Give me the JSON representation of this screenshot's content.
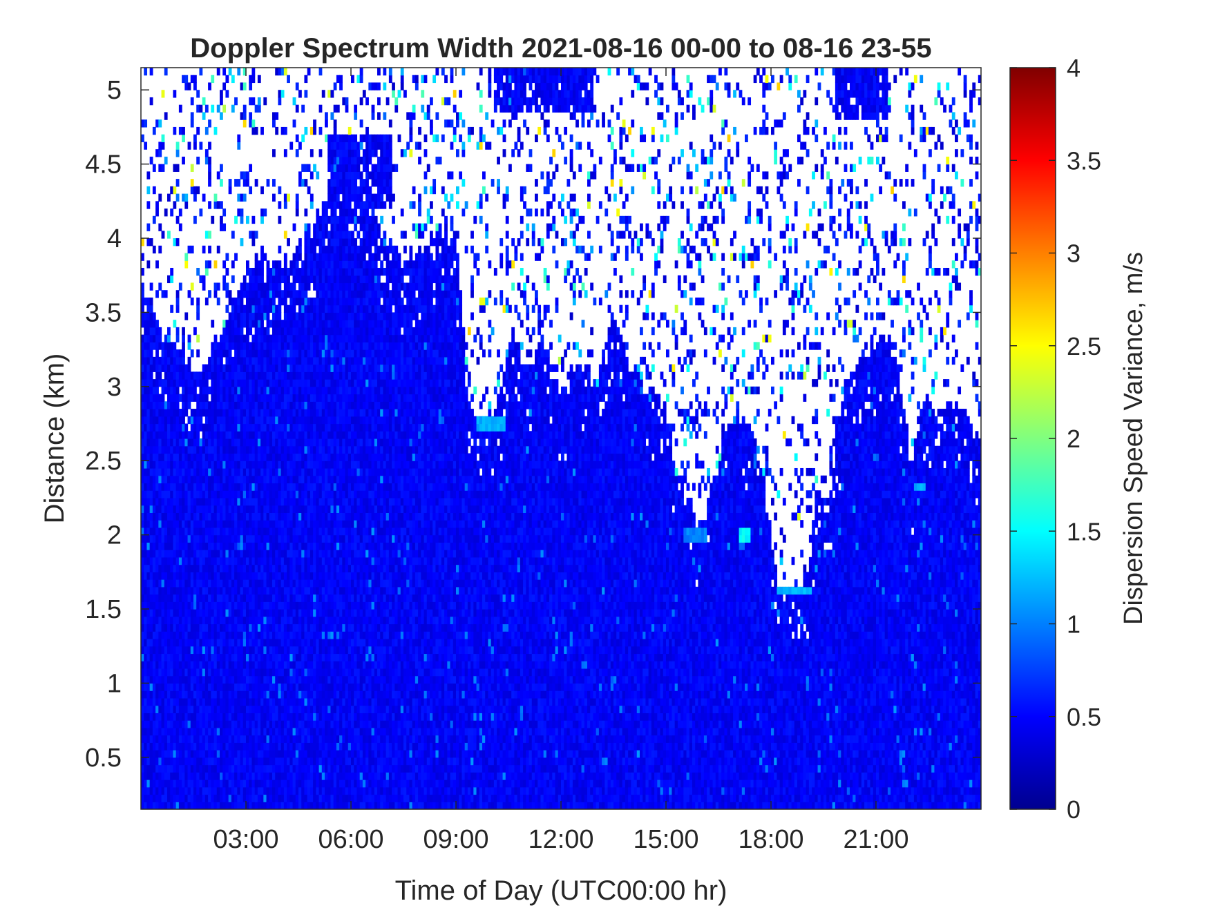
{
  "chart_data": {
    "type": "heatmap",
    "title": "Doppler Spectrum Width 2021-08-16 00-00 to 08-16 23-55",
    "xlabel": "Time of Day (UTC00:00 hr)",
    "ylabel": "Distance (km)",
    "xlim": [
      0,
      24
    ],
    "ylim": [
      0.15,
      5.15
    ],
    "x_ticks": [
      {
        "value": 3,
        "label": "03:00"
      },
      {
        "value": 6,
        "label": "06:00"
      },
      {
        "value": 9,
        "label": "09:00"
      },
      {
        "value": 12,
        "label": "12:00"
      },
      {
        "value": 15,
        "label": "15:00"
      },
      {
        "value": 18,
        "label": "18:00"
      },
      {
        "value": 21,
        "label": "21:00"
      }
    ],
    "y_ticks": [
      {
        "value": 0.5,
        "label": "0.5"
      },
      {
        "value": 1,
        "label": "1"
      },
      {
        "value": 1.5,
        "label": "1.5"
      },
      {
        "value": 2,
        "label": "2"
      },
      {
        "value": 2.5,
        "label": "2.5"
      },
      {
        "value": 3,
        "label": "3"
      },
      {
        "value": 3.5,
        "label": "3.5"
      },
      {
        "value": 4,
        "label": "4"
      },
      {
        "value": 4.5,
        "label": "4.5"
      },
      {
        "value": 5,
        "label": "5"
      }
    ],
    "colorbar": {
      "label": "Dispersion Speed Variance, m/s",
      "colormap": "jet",
      "range": [
        0,
        4
      ],
      "ticks": [
        {
          "value": 0,
          "label": "0"
        },
        {
          "value": 0.5,
          "label": "0.5"
        },
        {
          "value": 1,
          "label": "1"
        },
        {
          "value": 1.5,
          "label": "1.5"
        },
        {
          "value": 2,
          "label": "2"
        },
        {
          "value": 2.5,
          "label": "2.5"
        },
        {
          "value": 3,
          "label": "3"
        },
        {
          "value": 3.5,
          "label": "3.5"
        },
        {
          "value": 4,
          "label": "4"
        }
      ]
    },
    "grid": false,
    "background_color": "#ffffff",
    "signal_top_profile": [
      [
        0,
        3.8
      ],
      [
        0.5,
        3.4
      ],
      [
        1,
        3.3
      ],
      [
        1.5,
        3.1
      ],
      [
        2,
        3.2
      ],
      [
        2.5,
        3.5
      ],
      [
        3,
        3.8
      ],
      [
        3.5,
        3.9
      ],
      [
        4,
        3.85
      ],
      [
        4.5,
        3.95
      ],
      [
        5,
        4.1
      ],
      [
        5.5,
        4.35
      ],
      [
        6,
        4.3
      ],
      [
        6.5,
        4.2
      ],
      [
        7,
        4.0
      ],
      [
        7.5,
        3.9
      ],
      [
        8,
        3.9
      ],
      [
        8.5,
        4.1
      ],
      [
        9,
        4.0
      ],
      [
        9.3,
        3.0
      ],
      [
        9.6,
        2.8
      ],
      [
        10,
        2.8
      ],
      [
        10.3,
        3.0
      ],
      [
        10.6,
        3.4
      ],
      [
        11,
        3.1
      ],
      [
        11.5,
        3.3
      ],
      [
        12,
        3.0
      ],
      [
        12.5,
        3.2
      ],
      [
        13,
        3.0
      ],
      [
        13.5,
        3.5
      ],
      [
        14,
        3.1
      ],
      [
        14.5,
        3.0
      ],
      [
        15,
        2.9
      ],
      [
        15.3,
        2.4
      ],
      [
        15.6,
        2.3
      ],
      [
        16,
        2.0
      ],
      [
        16.3,
        2.3
      ],
      [
        16.6,
        2.6
      ],
      [
        17,
        2.85
      ],
      [
        17.5,
        2.7
      ],
      [
        18,
        2.0
      ],
      [
        18.2,
        1.6
      ],
      [
        18.6,
        1.6
      ],
      [
        19,
        1.7
      ],
      [
        19.3,
        2.3
      ],
      [
        19.6,
        2.1
      ],
      [
        20,
        2.9
      ],
      [
        20.5,
        3.2
      ],
      [
        21,
        3.3
      ],
      [
        21.5,
        3.35
      ],
      [
        22,
        2.5
      ],
      [
        22.3,
        2.9
      ],
      [
        22.7,
        2.85
      ],
      [
        23,
        2.9
      ],
      [
        23.5,
        2.85
      ],
      [
        24,
        2.6
      ]
    ],
    "dense_patches": [
      {
        "x": [
          10.1,
          12.9
        ],
        "y": [
          4.85,
          5.15
        ],
        "value": 0.5
      },
      {
        "x": [
          19.8,
          21.3
        ],
        "y": [
          4.8,
          5.15
        ],
        "value": 0.5
      },
      {
        "x": [
          5.3,
          7.2
        ],
        "y": [
          4.2,
          4.7
        ],
        "value": 0.5
      }
    ],
    "cyan_highlights": [
      {
        "x": [
          9.6,
          10.4
        ],
        "y": [
          2.72,
          2.8
        ],
        "value": 1.2
      },
      {
        "x": [
          17.1,
          17.4
        ],
        "y": [
          1.97,
          2.05
        ],
        "value": 1.5
      },
      {
        "x": [
          18.2,
          19.2
        ],
        "y": [
          1.58,
          1.66
        ],
        "value": 1.2
      },
      {
        "x": [
          22.1,
          22.4
        ],
        "y": [
          2.28,
          2.35
        ],
        "value": 1.2
      },
      {
        "x": [
          15.5,
          16.2
        ],
        "y": [
          1.97,
          2.05
        ],
        "value": 1.0
      }
    ]
  }
}
